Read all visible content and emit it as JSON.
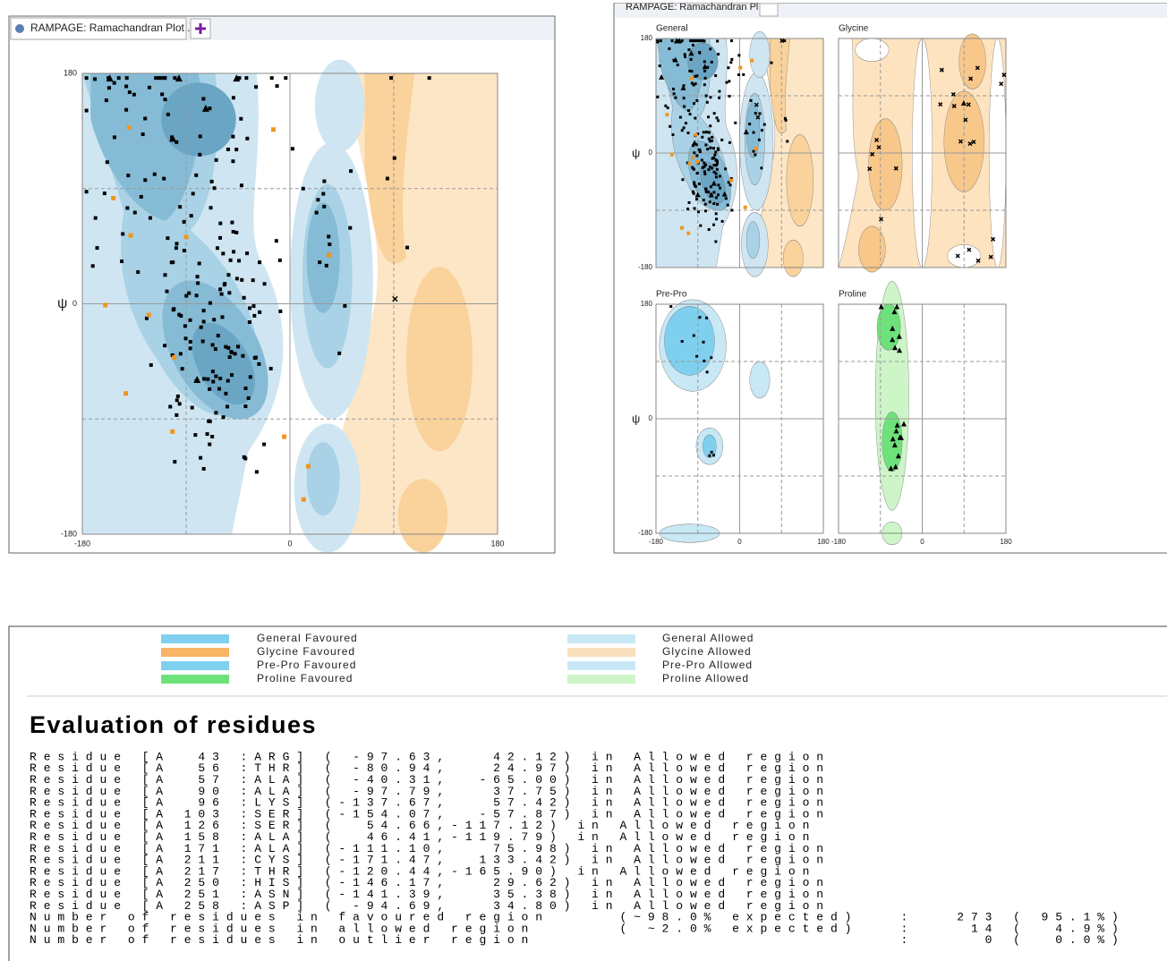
{
  "left_window": {
    "tab_title": "RAMPAGE: Ramachandran Plot ...",
    "y_label": "ψ",
    "yticks": [
      "180",
      "0",
      "-180"
    ],
    "xticks": [
      "-180",
      "0",
      "180"
    ]
  },
  "right_window": {
    "tab_title": "RAMPAGE: Ramachandran Plot ...",
    "panels": [
      {
        "label": "General",
        "y_label": "ψ",
        "yticks": [
          "180",
          "0",
          "-180"
        ]
      },
      {
        "label": "Glycine"
      },
      {
        "label": "Pre-Pro",
        "y_label": "ψ",
        "yticks": [
          "180",
          "0",
          "-180"
        ],
        "xticks": [
          "-180",
          "0",
          "180"
        ]
      },
      {
        "label": "Proline",
        "xticks": [
          "-180",
          "0",
          "180"
        ]
      }
    ]
  },
  "legend": [
    {
      "label": "General Favoured",
      "color": "#7fd0ee"
    },
    {
      "label": "General Allowed",
      "color": "#c8e8f6"
    },
    {
      "label": "Glycine Favoured",
      "color": "#f7b565"
    },
    {
      "label": "Glycine Allowed",
      "color": "#fbe0bd"
    },
    {
      "label": "Pre-Pro Favoured",
      "color": "#7fd0ee"
    },
    {
      "label": "Pre-Pro Allowed",
      "color": "#c8e8f6"
    },
    {
      "label": "Proline Favoured",
      "color": "#6ee27a"
    },
    {
      "label": "Proline Allowed",
      "color": "#cdf5c8"
    }
  ],
  "evaluation": {
    "title": "Evaluation of residues",
    "lines": [
      "Residue [A  43 :ARG] ( -97.63,   42.12) in Allowed region",
      "Residue [A  56 :THR] ( -80.94,   24.97) in Allowed region",
      "Residue [A  57 :ALA] ( -40.31,  -65.00) in Allowed region",
      "Residue [A  90 :ALA] ( -97.79,   37.75) in Allowed region",
      "Residue [A  96 :LYS] (-137.67,   57.42) in Allowed region",
      "Residue [A 103 :SER] (-154.07,  -57.87) in Allowed region",
      "Residue [A 126 :SER] (  54.66,-117.12) in Allowed region",
      "Residue [A 158 :ALA] (  46.41,-119.79) in Allowed region",
      "Residue [A 171 :ALA] (-111.10,   75.98) in Allowed region",
      "Residue [A 211 :CYS] (-171.47,  133.42) in Allowed region",
      "Residue [A 217 :THR] (-120.44,-165.90) in Allowed region",
      "Residue [A 250 :HIS] (-146.17,   29.62) in Allowed region",
      "Residue [A 251 :ASN] (-141.39,   35.38) in Allowed region",
      "Residue [A 258 :ASP] ( -94.69,   34.80) in Allowed region",
      "Number of residues in favoured region     (~98.0% expected)   :   273 ( 95.1%)",
      "Number of residues in allowed region      ( ~2.0% expected)   :    14 (  4.9%)",
      "Number of residues in outlier region                          :     0 (  0.0%)"
    ]
  }
}
